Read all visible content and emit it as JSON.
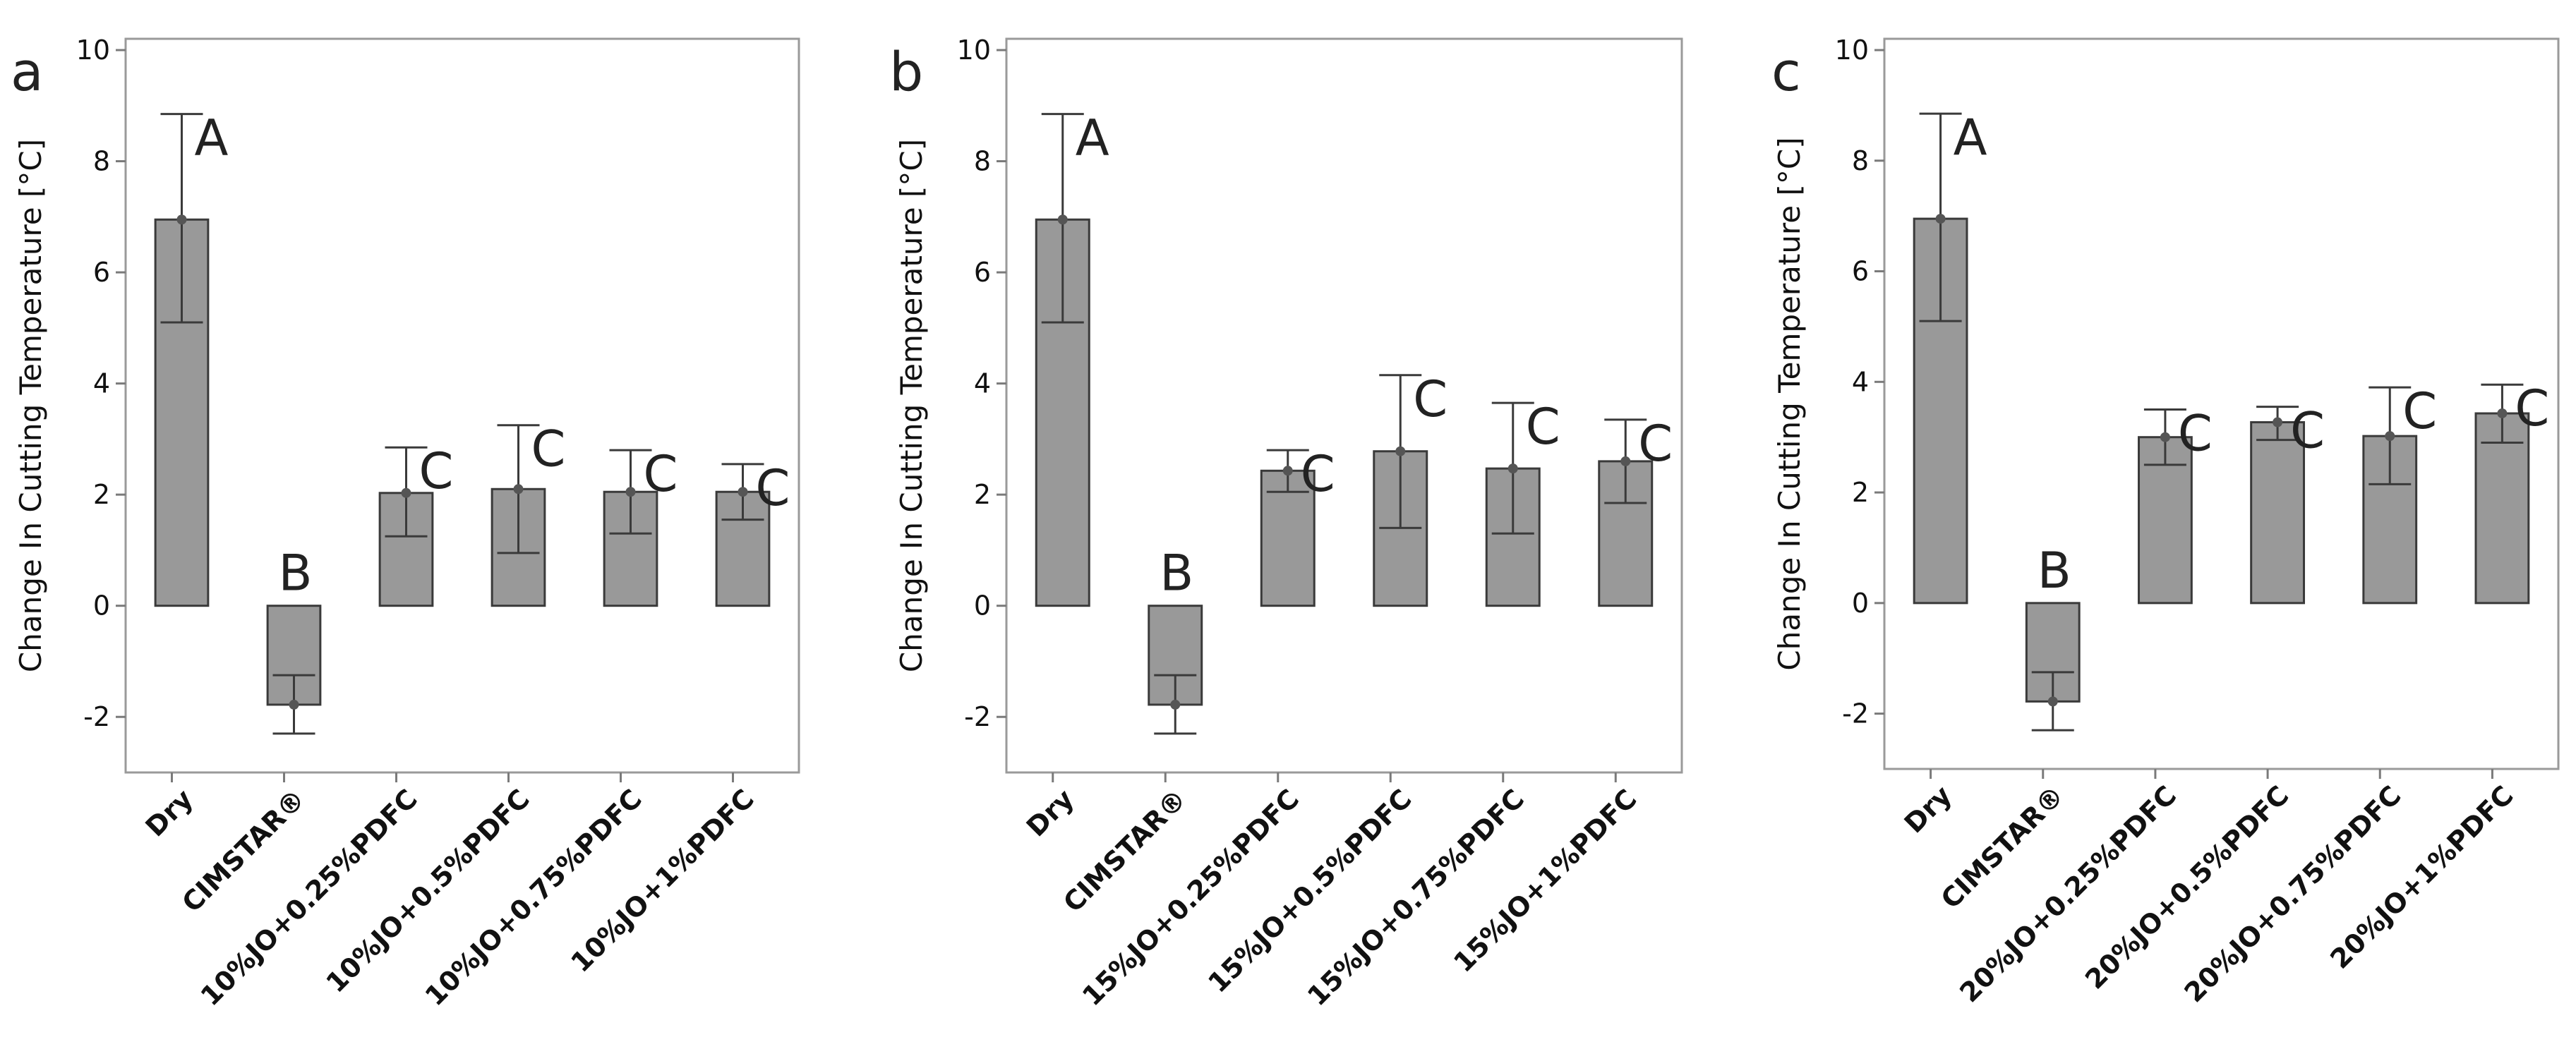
{
  "chart_data": [
    {
      "type": "bar",
      "panel": "a",
      "ylabel": "Change In Cutting Temperature [°C]",
      "ylim": [
        -3,
        10
      ],
      "yticks": [
        -2,
        0,
        2,
        4,
        6,
        8,
        10
      ],
      "categories": [
        "Dry",
        "CIMSTAR®",
        "10%JO+0.25%PDFC",
        "10%JO+0.5%PDFC",
        "10%JO+0.75%PDFC",
        "10%JO+1%PDFC"
      ],
      "values": [
        6.95,
        -1.78,
        2.03,
        2.1,
        2.05,
        2.05
      ],
      "error_low": [
        5.1,
        -2.3,
        1.25,
        0.95,
        1.3,
        1.55
      ],
      "error_high": [
        8.85,
        -1.25,
        2.85,
        3.25,
        2.8,
        2.55
      ],
      "group_labels": [
        "A",
        "B",
        "C",
        "C",
        "C",
        "C"
      ]
    },
    {
      "type": "bar",
      "panel": "b",
      "ylabel": "Change In Cutting Temperature [°C]",
      "ylim": [
        -3,
        10
      ],
      "yticks": [
        -2,
        0,
        2,
        4,
        6,
        8,
        10
      ],
      "categories": [
        "Dry",
        "CIMSTAR®",
        "15%JO+0.25%PDFC",
        "15%JO+0.5%PDFC",
        "15%JO+0.75%PDFC",
        "15%JO+1%PDFC"
      ],
      "values": [
        6.95,
        -1.78,
        2.43,
        2.78,
        2.47,
        2.6
      ],
      "error_low": [
        5.1,
        -2.3,
        2.05,
        1.4,
        1.3,
        1.85
      ],
      "error_high": [
        8.85,
        -1.25,
        2.8,
        4.15,
        3.65,
        3.35
      ],
      "group_labels": [
        "A",
        "B",
        "C",
        "C",
        "C",
        "C"
      ]
    },
    {
      "type": "bar",
      "panel": "c",
      "ylabel": "Change In Cutting Temperature [°C]",
      "ylim": [
        -3,
        10
      ],
      "yticks": [
        -2,
        0,
        2,
        4,
        6,
        8,
        10
      ],
      "categories": [
        "Dry",
        "CIMSTAR®",
        "20%JO+0.25%PDFC",
        "20%JO+0.5%PDFC",
        "20%JO+0.75%PDFC",
        "20%JO+1%PDFC"
      ],
      "values": [
        6.95,
        -1.78,
        3.0,
        3.27,
        3.02,
        3.43
      ],
      "error_low": [
        5.1,
        -2.3,
        2.5,
        2.95,
        2.15,
        2.9
      ],
      "error_high": [
        8.85,
        -1.25,
        3.5,
        3.55,
        3.9,
        3.95
      ],
      "group_labels": [
        "A",
        "B",
        "C",
        "C",
        "C",
        "C"
      ]
    }
  ]
}
